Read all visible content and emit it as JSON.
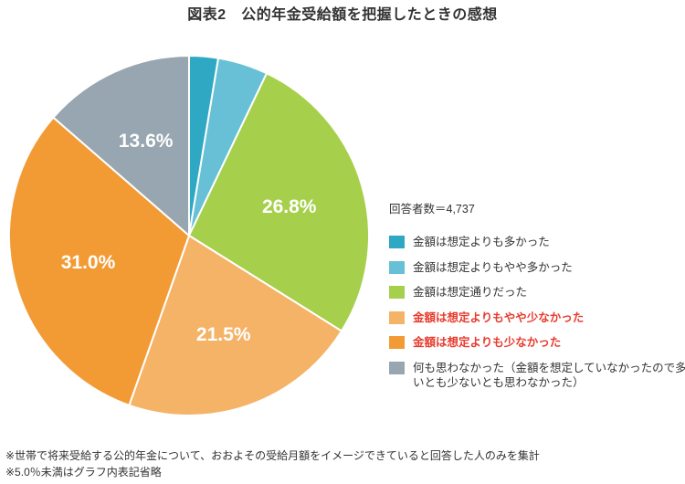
{
  "chart_data": {
    "type": "pie",
    "title": "図表2　公的年金受給額を把握したときの感想",
    "n_label": "回答者数＝4,737",
    "slices": [
      {
        "name": "金額は想定よりも多かった",
        "value": 2.6,
        "label": "",
        "color": "#2fa8c4",
        "highlight": false
      },
      {
        "name": "金額は想定よりもやや多かった",
        "value": 4.5,
        "label": "",
        "color": "#67c0d5",
        "highlight": false
      },
      {
        "name": "金額は想定通りだった",
        "value": 26.8,
        "label": "26.8%",
        "color": "#a6cf4b",
        "highlight": false
      },
      {
        "name": "金額は想定よりもやや少なかった",
        "value": 21.5,
        "label": "21.5%",
        "color": "#f5b368",
        "highlight": true
      },
      {
        "name": "金額は想定よりも少なかった",
        "value": 31.0,
        "label": "31.0%",
        "color": "#f29b35",
        "highlight": true
      },
      {
        "name": "何も思わなかった（金額を想定していなかったので多いとも少ないとも思わなかった）",
        "value": 13.6,
        "label": "13.6%",
        "color": "#97a6b0",
        "highlight": false
      }
    ],
    "legend_position": "right",
    "notes": [
      "※世帯で将来受給する公的年金について、おおよその受給月額をイメージできていると回答した人のみを集計",
      "※5.0％未満はグラフ内表記省略"
    ]
  }
}
